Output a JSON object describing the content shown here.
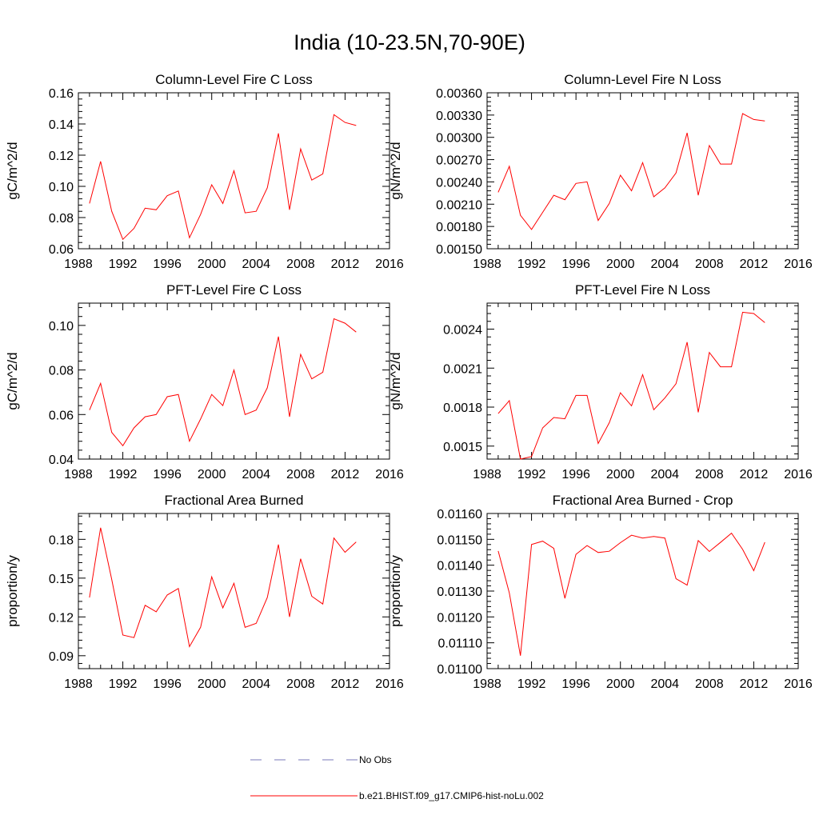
{
  "figure_title": "India (10-23.5N,70-90E)",
  "colors": {
    "model": "#ff0000",
    "obs": "#7a7ab8",
    "axis": "#000000"
  },
  "legend": {
    "obs_label": "No Obs",
    "model_label": "b.e21.BHIST.f09_g17.CMIP6-hist-noLu.002"
  },
  "chart_data": [
    {
      "type": "line",
      "title": "Column-Level Fire C Loss",
      "ylabel": "gC/m^2/d",
      "xlim": [
        1988,
        2016
      ],
      "ylim": [
        0.06,
        0.16
      ],
      "xticks": [
        1988,
        1992,
        1996,
        2000,
        2004,
        2008,
        2012,
        2016
      ],
      "xtick_labels": [
        "1988",
        "1992",
        "1996",
        "2000",
        "2004",
        "2008",
        "2012",
        "2016"
      ],
      "yticks": [
        0.06,
        0.08,
        0.1,
        0.12,
        0.14,
        0.16
      ],
      "ytick_labels": [
        "0.06",
        "0.08",
        "0.10",
        "0.12",
        "0.14",
        "0.16"
      ],
      "x": [
        1989,
        1990,
        1991,
        1992,
        1993,
        1994,
        1995,
        1996,
        1997,
        1998,
        1999,
        2000,
        2001,
        2002,
        2003,
        2004,
        2005,
        2006,
        2007,
        2008,
        2009,
        2010,
        2011,
        2012,
        2013
      ],
      "series": [
        {
          "name": "b.e21.BHIST.f09_g17.CMIP6-hist-noLu.002",
          "values": [
            0.089,
            0.116,
            0.084,
            0.066,
            0.073,
            0.086,
            0.085,
            0.094,
            0.097,
            0.067,
            0.082,
            0.101,
            0.089,
            0.11,
            0.083,
            0.084,
            0.099,
            0.134,
            0.085,
            0.124,
            0.104,
            0.108,
            0.146,
            0.141,
            0.139
          ]
        }
      ]
    },
    {
      "type": "line",
      "title": "Column-Level Fire N Loss",
      "ylabel": "gN/m^2/d",
      "xlim": [
        1988,
        2016
      ],
      "ylim": [
        0.0015,
        0.0036
      ],
      "xticks": [
        1988,
        1992,
        1996,
        2000,
        2004,
        2008,
        2012,
        2016
      ],
      "xtick_labels": [
        "1988",
        "1992",
        "1996",
        "2000",
        "2004",
        "2008",
        "2012",
        "2016"
      ],
      "yticks": [
        0.0015,
        0.0018,
        0.0021,
        0.0024,
        0.0027,
        0.003,
        0.0033,
        0.0036
      ],
      "ytick_labels": [
        "0.00150",
        "0.00180",
        "0.00210",
        "0.00240",
        "0.00270",
        "0.00300",
        "0.00330",
        "0.00360"
      ],
      "x": [
        1989,
        1990,
        1991,
        1992,
        1993,
        1994,
        1995,
        1996,
        1997,
        1998,
        1999,
        2000,
        2001,
        2002,
        2003,
        2004,
        2005,
        2006,
        2007,
        2008,
        2009,
        2010,
        2011,
        2012,
        2013
      ],
      "series": [
        {
          "name": "b.e21.BHIST.f09_g17.CMIP6-hist-noLu.002",
          "values": [
            0.00226,
            0.00261,
            0.00195,
            0.00176,
            0.00199,
            0.00222,
            0.00216,
            0.00238,
            0.0024,
            0.00188,
            0.00211,
            0.00249,
            0.00228,
            0.00266,
            0.0022,
            0.00232,
            0.00252,
            0.00306,
            0.00222,
            0.00289,
            0.00264,
            0.00264,
            0.00332,
            0.00324,
            0.00322
          ]
        }
      ]
    },
    {
      "type": "line",
      "title": "PFT-Level Fire C Loss",
      "ylabel": "gC/m^2/d",
      "xlim": [
        1988,
        2016
      ],
      "ylim": [
        0.04,
        0.11
      ],
      "xticks": [
        1988,
        1992,
        1996,
        2000,
        2004,
        2008,
        2012,
        2016
      ],
      "xtick_labels": [
        "1988",
        "1992",
        "1996",
        "2000",
        "2004",
        "2008",
        "2012",
        "2016"
      ],
      "yticks": [
        0.04,
        0.06,
        0.08,
        0.1
      ],
      "ytick_labels": [
        "0.04",
        "0.06",
        "0.08",
        "0.10"
      ],
      "x": [
        1989,
        1990,
        1991,
        1992,
        1993,
        1994,
        1995,
        1996,
        1997,
        1998,
        1999,
        2000,
        2001,
        2002,
        2003,
        2004,
        2005,
        2006,
        2007,
        2008,
        2009,
        2010,
        2011,
        2012,
        2013
      ],
      "series": [
        {
          "name": "b.e21.BHIST.f09_g17.CMIP6-hist-noLu.002",
          "values": [
            0.062,
            0.074,
            0.052,
            0.046,
            0.054,
            0.059,
            0.06,
            0.068,
            0.069,
            0.048,
            0.058,
            0.069,
            0.064,
            0.08,
            0.06,
            0.062,
            0.072,
            0.095,
            0.059,
            0.087,
            0.076,
            0.079,
            0.103,
            0.101,
            0.097
          ]
        }
      ]
    },
    {
      "type": "line",
      "title": "PFT-Level Fire N Loss",
      "ylabel": "gN/m^2/d",
      "xlim": [
        1988,
        2016
      ],
      "ylim": [
        0.0014,
        0.0026
      ],
      "xticks": [
        1988,
        1992,
        1996,
        2000,
        2004,
        2008,
        2012,
        2016
      ],
      "xtick_labels": [
        "1988",
        "1992",
        "1996",
        "2000",
        "2004",
        "2008",
        "2012",
        "2016"
      ],
      "yticks": [
        0.0015,
        0.0018,
        0.0021,
        0.0024
      ],
      "ytick_labels": [
        "0.0015",
        "0.0018",
        "0.0021",
        "0.0024"
      ],
      "x": [
        1989,
        1990,
        1991,
        1992,
        1993,
        1994,
        1995,
        1996,
        1997,
        1998,
        1999,
        2000,
        2001,
        2002,
        2003,
        2004,
        2005,
        2006,
        2007,
        2008,
        2009,
        2010,
        2011,
        2012,
        2013
      ],
      "series": [
        {
          "name": "b.e21.BHIST.f09_g17.CMIP6-hist-noLu.002",
          "values": [
            0.00175,
            0.00185,
            0.0014,
            0.00142,
            0.00164,
            0.00172,
            0.00171,
            0.00189,
            0.00189,
            0.00152,
            0.00168,
            0.00191,
            0.00181,
            0.00205,
            0.00178,
            0.00187,
            0.00198,
            0.0023,
            0.00176,
            0.00222,
            0.00211,
            0.00211,
            0.00253,
            0.00252,
            0.00245
          ]
        }
      ]
    },
    {
      "type": "line",
      "title": "Fractional Area Burned",
      "ylabel": "proportion/y",
      "xlim": [
        1988,
        2016
      ],
      "ylim": [
        0.08,
        0.2
      ],
      "xticks": [
        1988,
        1992,
        1996,
        2000,
        2004,
        2008,
        2012,
        2016
      ],
      "xtick_labels": [
        "1988",
        "1992",
        "1996",
        "2000",
        "2004",
        "2008",
        "2012",
        "2016"
      ],
      "yticks": [
        0.09,
        0.12,
        0.15,
        0.18
      ],
      "ytick_labels": [
        "0.09",
        "0.12",
        "0.15",
        "0.18"
      ],
      "x": [
        1989,
        1990,
        1991,
        1992,
        1993,
        1994,
        1995,
        1996,
        1997,
        1998,
        1999,
        2000,
        2001,
        2002,
        2003,
        2004,
        2005,
        2006,
        2007,
        2008,
        2009,
        2010,
        2011,
        2012,
        2013
      ],
      "series": [
        {
          "name": "b.e21.BHIST.f09_g17.CMIP6-hist-noLu.002",
          "values": [
            0.135,
            0.189,
            0.149,
            0.106,
            0.104,
            0.129,
            0.124,
            0.137,
            0.142,
            0.097,
            0.112,
            0.151,
            0.127,
            0.146,
            0.112,
            0.115,
            0.135,
            0.176,
            0.12,
            0.165,
            0.136,
            0.13,
            0.181,
            0.17,
            0.178
          ]
        }
      ]
    },
    {
      "type": "line",
      "title": "Fractional Area Burned - Crop",
      "ylabel": "proportion/y",
      "xlim": [
        1988,
        2016
      ],
      "ylim": [
        0.011,
        0.0116
      ],
      "xticks": [
        1988,
        1992,
        1996,
        2000,
        2004,
        2008,
        2012,
        2016
      ],
      "xtick_labels": [
        "1988",
        "1992",
        "1996",
        "2000",
        "2004",
        "2008",
        "2012",
        "2016"
      ],
      "yticks": [
        0.011,
        0.0111,
        0.0112,
        0.0113,
        0.0114,
        0.0115,
        0.0116
      ],
      "ytick_labels": [
        "0.01100",
        "0.01110",
        "0.01120",
        "0.01130",
        "0.01140",
        "0.01150",
        "0.01160"
      ],
      "x": [
        1989,
        1990,
        1991,
        1992,
        1993,
        1994,
        1995,
        1996,
        1997,
        1998,
        1999,
        2000,
        2001,
        2002,
        2003,
        2004,
        2005,
        2006,
        2007,
        2008,
        2009,
        2010,
        2011,
        2012,
        2013
      ],
      "series": [
        {
          "name": "b.e21.BHIST.f09_g17.CMIP6-hist-noLu.002",
          "values": [
            0.011455,
            0.011293,
            0.01105,
            0.01148,
            0.011493,
            0.011465,
            0.011272,
            0.011442,
            0.011476,
            0.011449,
            0.011454,
            0.011487,
            0.011516,
            0.011505,
            0.011511,
            0.011505,
            0.011348,
            0.011323,
            0.011495,
            0.011453,
            0.011488,
            0.011524,
            0.011461,
            0.011379,
            0.011489
          ]
        }
      ]
    }
  ]
}
